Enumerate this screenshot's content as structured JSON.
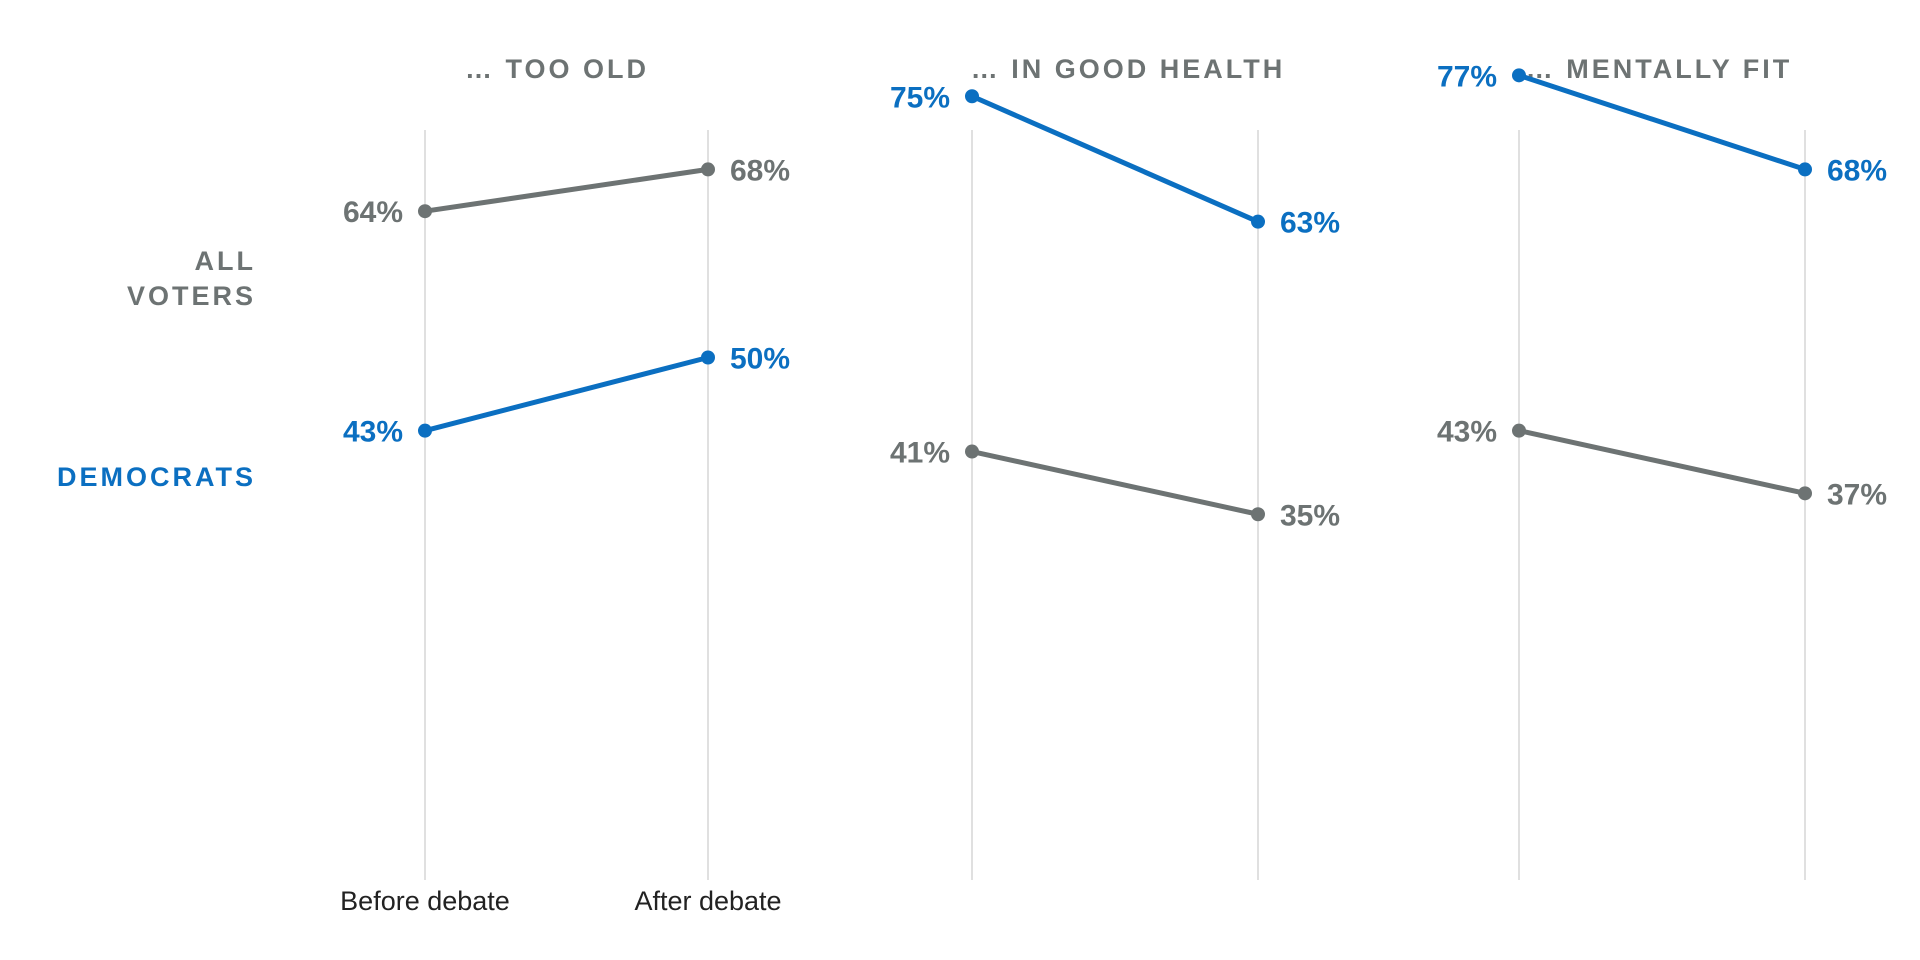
{
  "colors": {
    "all_voters": "#6d7373",
    "democrats": "#0b6fc1",
    "gridline": "#d6d6d6",
    "tick_text": "#222222"
  },
  "chart_data": {
    "type": "line",
    "categories": [
      "Before debate",
      "After debate"
    ],
    "row_labels": [
      {
        "key": "all_voters",
        "lines": [
          "ALL",
          "VOTERS"
        ]
      },
      {
        "key": "democrats",
        "lines": [
          "DEMOCRATS"
        ]
      }
    ],
    "panels": [
      {
        "title": "… TOO OLD",
        "series": [
          {
            "name": "ALL VOTERS",
            "key": "all_voters",
            "values": [
              64,
              68
            ],
            "labels": [
              "64%",
              "68%"
            ]
          },
          {
            "name": "DEMOCRATS",
            "key": "democrats",
            "values": [
              43,
              50
            ],
            "labels": [
              "43%",
              "50%"
            ]
          }
        ]
      },
      {
        "title": "… IN GOOD HEALTH",
        "series": [
          {
            "name": "ALL VOTERS",
            "key": "all_voters",
            "values": [
              41,
              35
            ],
            "labels": [
              "41%",
              "35%"
            ]
          },
          {
            "name": "DEMOCRATS",
            "key": "democrats",
            "values": [
              75,
              63
            ],
            "labels": [
              "75%",
              "63%"
            ]
          }
        ]
      },
      {
        "title": "… MENTALLY FIT",
        "series": [
          {
            "name": "ALL VOTERS",
            "key": "all_voters",
            "values": [
              43,
              37
            ],
            "labels": [
              "43%",
              "37%"
            ]
          },
          {
            "name": "DEMOCRATS",
            "key": "democrats",
            "values": [
              77,
              68
            ],
            "labels": [
              "77%",
              "68%"
            ]
          }
        ]
      }
    ],
    "ylim": [
      0,
      83
    ],
    "grid": true,
    "legend": "left"
  }
}
